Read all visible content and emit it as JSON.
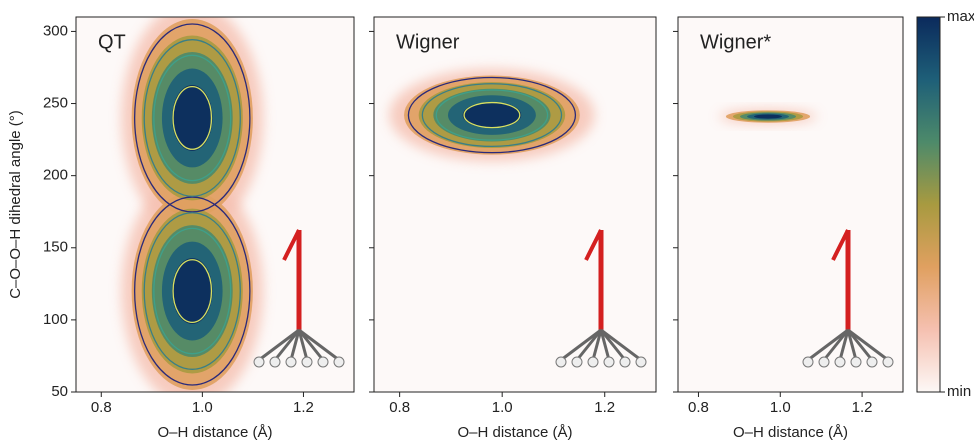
{
  "chart_data": [
    {
      "type": "density",
      "title": "QT",
      "xlabel": "O–H distance (Å)",
      "ylabel": "C–O–O–H dihedral angle (°)",
      "xlim": [
        0.75,
        1.3
      ],
      "xticks": [
        0.8,
        {
          "value": 1,
          "label": "1.0"
        },
        1.2
      ],
      "ylim": [
        50,
        310
      ],
      "yticks": [
        50,
        100,
        150,
        200,
        250,
        300
      ],
      "peaks": [
        {
          "x": 0.98,
          "y": 240
        },
        {
          "x": 0.98,
          "y": 120
        }
      ]
    },
    {
      "type": "density",
      "title": "Wigner",
      "xlabel": "O–H distance (Å)",
      "xlim": [
        0.75,
        1.3
      ],
      "xticks": [
        0.8,
        {
          "value": 1,
          "label": "1.0"
        },
        1.2
      ],
      "ylim": [
        50,
        310
      ],
      "yticks": [
        50,
        100,
        150,
        200,
        250,
        300
      ],
      "peaks": [
        {
          "x": 0.98,
          "y": 242
        }
      ]
    },
    {
      "type": "density",
      "title": "Wigner*",
      "xlabel": "O–H distance (Å)",
      "xlim": [
        0.75,
        1.3
      ],
      "xticks": [
        0.8,
        {
          "value": 1,
          "label": "1.0"
        },
        1.2
      ],
      "ylim": [
        50,
        310
      ],
      "yticks": [
        50,
        100,
        150,
        200,
        250,
        300
      ],
      "peaks": [
        {
          "x": 0.97,
          "y": 241
        }
      ]
    },
    {
      "type": "colorbar",
      "max_label": "max",
      "min_label": "min",
      "colors": [
        "#fdf8f6",
        "#f5c0b0",
        "#e0a060",
        "#a89a40",
        "#4d8a6a",
        "#1e5f78",
        "#0b2a5c"
      ]
    }
  ]
}
